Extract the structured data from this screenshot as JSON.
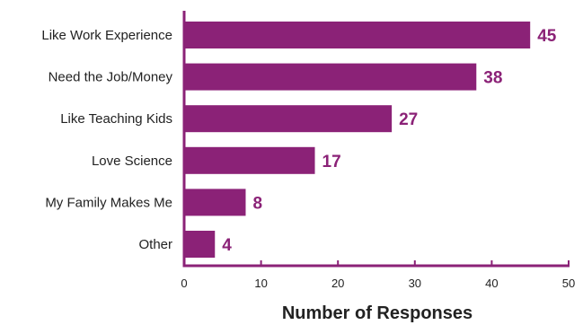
{
  "chart_data": {
    "type": "bar",
    "orientation": "horizontal",
    "categories": [
      "Like Work Experience",
      "Need the Job/Money",
      "Like Teaching Kids",
      "Love Science",
      "My Family Makes Me",
      "Other"
    ],
    "values": [
      45,
      38,
      27,
      17,
      8,
      4
    ],
    "xlabel": "Number of Responses",
    "ylabel": "",
    "xlim": [
      0,
      50
    ],
    "xticks": [
      "0",
      "10",
      "20",
      "30",
      "40",
      "50"
    ],
    "grid": false,
    "bar_color": "#8b2277",
    "value_label_color": "#8b2277",
    "axis_color": "#8b2277"
  }
}
